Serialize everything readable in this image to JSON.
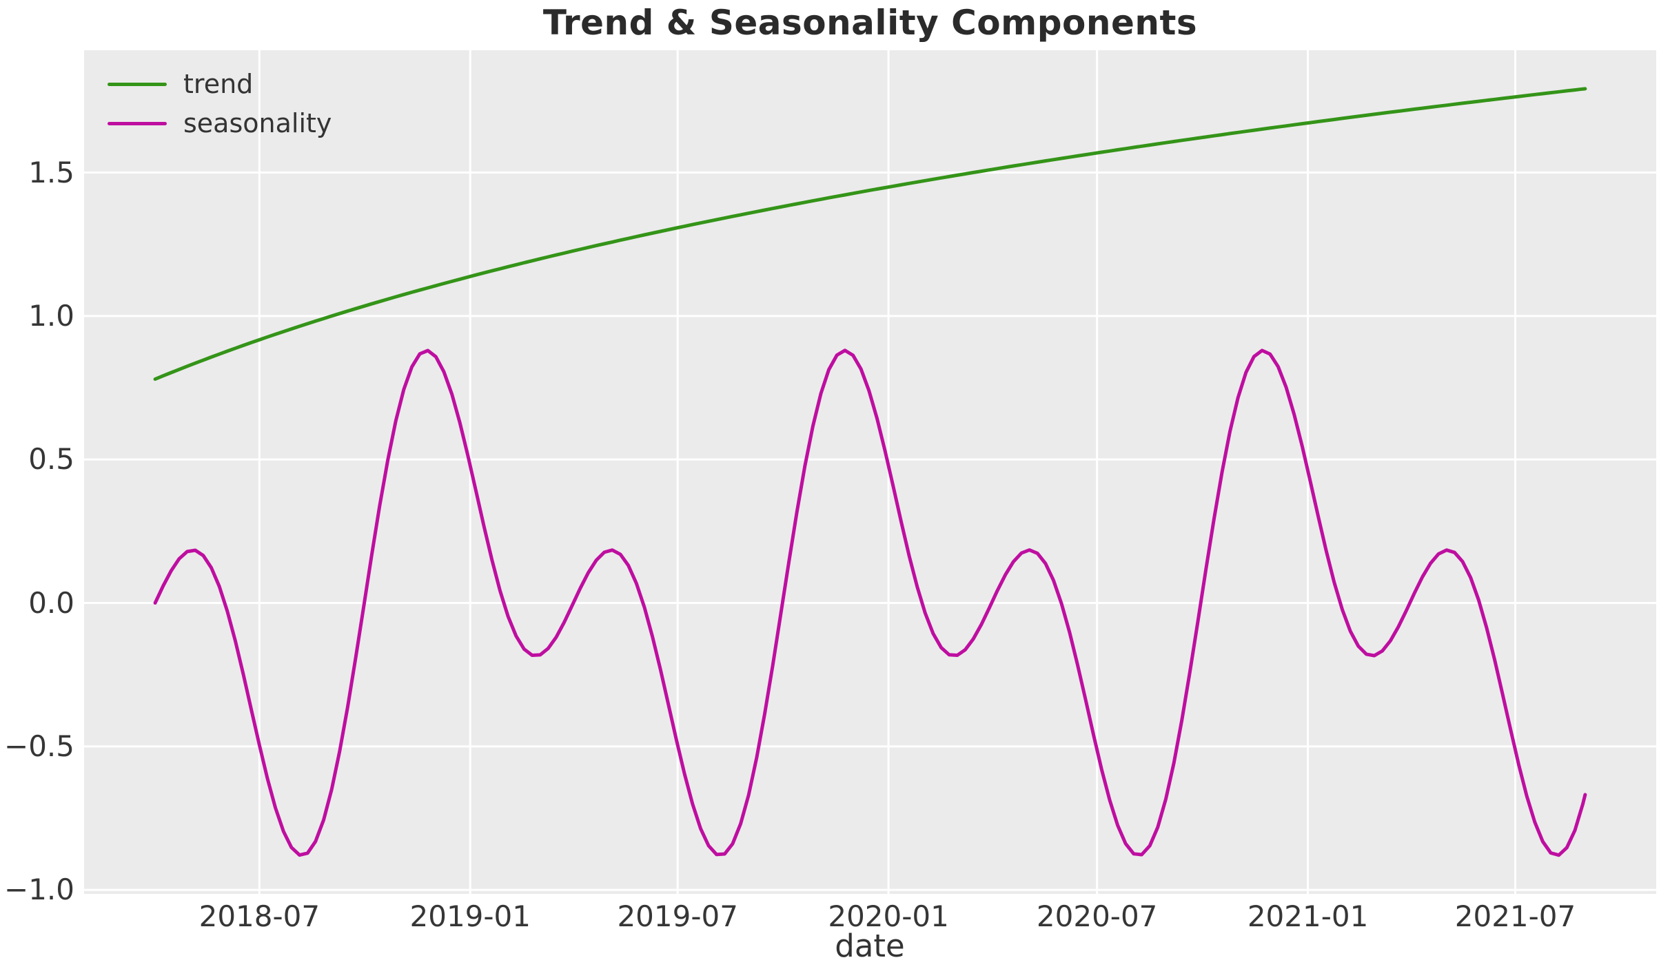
{
  "title": "Trend & Seasonality Components",
  "xlabel": "date",
  "colors": {
    "figure_background": "#ffffff",
    "axes_background": "#ebebeb",
    "gridline": "#ffffff",
    "title_text": "#2b2b2b",
    "tick_text": "#363636",
    "trend_line": "#349418",
    "seasonality_line": "#be0ea0"
  },
  "legend": {
    "location": "upper left",
    "frame": false,
    "items": [
      {
        "label": "trend",
        "color": "#349418"
      },
      {
        "label": "seasonality",
        "color": "#be0ea0"
      }
    ]
  },
  "axes": {
    "grid": true,
    "x_unit": "days since 2018-04-01",
    "xlim_days": [
      -62,
      1310
    ],
    "ylim": [
      -1.014,
      1.926
    ],
    "x_ticks": [
      {
        "label": "2018-07",
        "t": 91
      },
      {
        "label": "2019-01",
        "t": 275
      },
      {
        "label": "2019-07",
        "t": 456
      },
      {
        "label": "2020-01",
        "t": 640
      },
      {
        "label": "2020-07",
        "t": 822
      },
      {
        "label": "2021-01",
        "t": 1006
      },
      {
        "label": "2021-07",
        "t": 1187
      }
    ],
    "y_ticks": [
      {
        "label": "−1.0",
        "v": -1.0
      },
      {
        "label": "−0.5",
        "v": -0.5
      },
      {
        "label": "0.0",
        "v": 0.0
      },
      {
        "label": "0.5",
        "v": 0.5
      },
      {
        "label": "1.0",
        "v": 1.0
      },
      {
        "label": "1.5",
        "v": 1.5
      }
    ]
  },
  "chart_data": {
    "type": "line",
    "title": "Trend & Seasonality Components",
    "xlabel": "date",
    "ylabel": "",
    "start_date": "2018-04-01",
    "end_date": "2021-08-31",
    "t_range_days": [
      0,
      1248
    ],
    "sample_step_days": 7,
    "legend_position": "upper left",
    "series": [
      {
        "name": "trend",
        "color": "#349418",
        "line_width": 5,
        "model": {
          "kind": "log",
          "formula": "y = 0.78 + 0.79*ln(1 + t/480), t in days since 2018-04-01",
          "a": 0.78,
          "b": 0.79,
          "c": 480
        },
        "keypoints": [
          [
            "2018-04-01",
            0.78
          ],
          [
            "2018-07-01",
            0.92
          ],
          [
            "2019-01-01",
            1.14
          ],
          [
            "2019-07-01",
            1.31
          ],
          [
            "2020-01-01",
            1.45
          ],
          [
            "2020-07-01",
            1.57
          ],
          [
            "2021-01-01",
            1.67
          ],
          [
            "2021-07-01",
            1.76
          ],
          [
            "2021-08-31",
            1.79
          ]
        ]
      },
      {
        "name": "seasonality",
        "color": "#be0ea0",
        "line_width": 5,
        "model": {
          "kind": "sines",
          "formula": "y = 0.5*sin(4*pi*t/365) - 0.5*sin(2*pi*t/365), t in days since 2018-04-01",
          "a1": -0.5,
          "a2": 0.5,
          "p": 365
        },
        "keypoints": [
          [
            "2018-04-01",
            0.0
          ],
          [
            "2018-05-04",
            0.18
          ],
          [
            "2018-07-01",
            -0.5
          ],
          [
            "2018-08-07",
            -0.88
          ],
          [
            "2018-11-24",
            0.88
          ],
          [
            "2019-01-01",
            0.48
          ],
          [
            "2019-02-27",
            -0.18
          ],
          [
            "2019-05-04",
            0.18
          ],
          [
            "2019-08-07",
            -0.88
          ],
          [
            "2019-11-24",
            0.88
          ],
          [
            "2020-01-01",
            0.48
          ],
          [
            "2020-02-27",
            -0.18
          ],
          [
            "2020-05-03",
            0.18
          ],
          [
            "2020-08-06",
            -0.88
          ],
          [
            "2020-11-23",
            0.88
          ],
          [
            "2021-01-01",
            0.46
          ],
          [
            "2021-02-26",
            -0.18
          ],
          [
            "2021-05-04",
            0.18
          ],
          [
            "2021-08-07",
            -0.88
          ],
          [
            "2021-08-31",
            -0.67
          ]
        ]
      }
    ]
  }
}
